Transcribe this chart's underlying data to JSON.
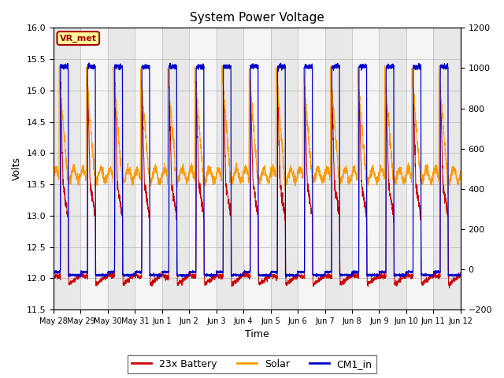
{
  "title": "System Power Voltage",
  "xlabel": "Time",
  "ylabel_left": "Volts",
  "ylim_left": [
    11.5,
    16.0
  ],
  "ylim_right": [
    -200,
    1200
  ],
  "yticks_left": [
    11.5,
    12.0,
    12.5,
    13.0,
    13.5,
    14.0,
    14.5,
    15.0,
    15.5,
    16.0
  ],
  "yticks_right": [
    -200,
    0,
    200,
    400,
    600,
    800,
    1000,
    1200
  ],
  "annotation_text": "VR_met",
  "annotation_color": "#aa0000",
  "annotation_bg": "#ffff99",
  "line_colors": {
    "battery": "#cc0000",
    "solar": "#ff9900",
    "cm1": "#0000cc"
  },
  "legend_labels": [
    "23x Battery",
    "Solar",
    "CM1_in"
  ],
  "x_tick_labels": [
    "May 28",
    "May 29",
    "May 30",
    "May 31",
    "Jun 1",
    "Jun 2",
    "Jun 3",
    "Jun 4",
    "Jun 5",
    "Jun 6",
    "Jun 7",
    "Jun 8",
    "Jun 9",
    "Jun 10",
    "Jun 11",
    "Jun 12"
  ],
  "band_color_a": "#e8e8e8",
  "band_color_b": "#f5f5f5"
}
